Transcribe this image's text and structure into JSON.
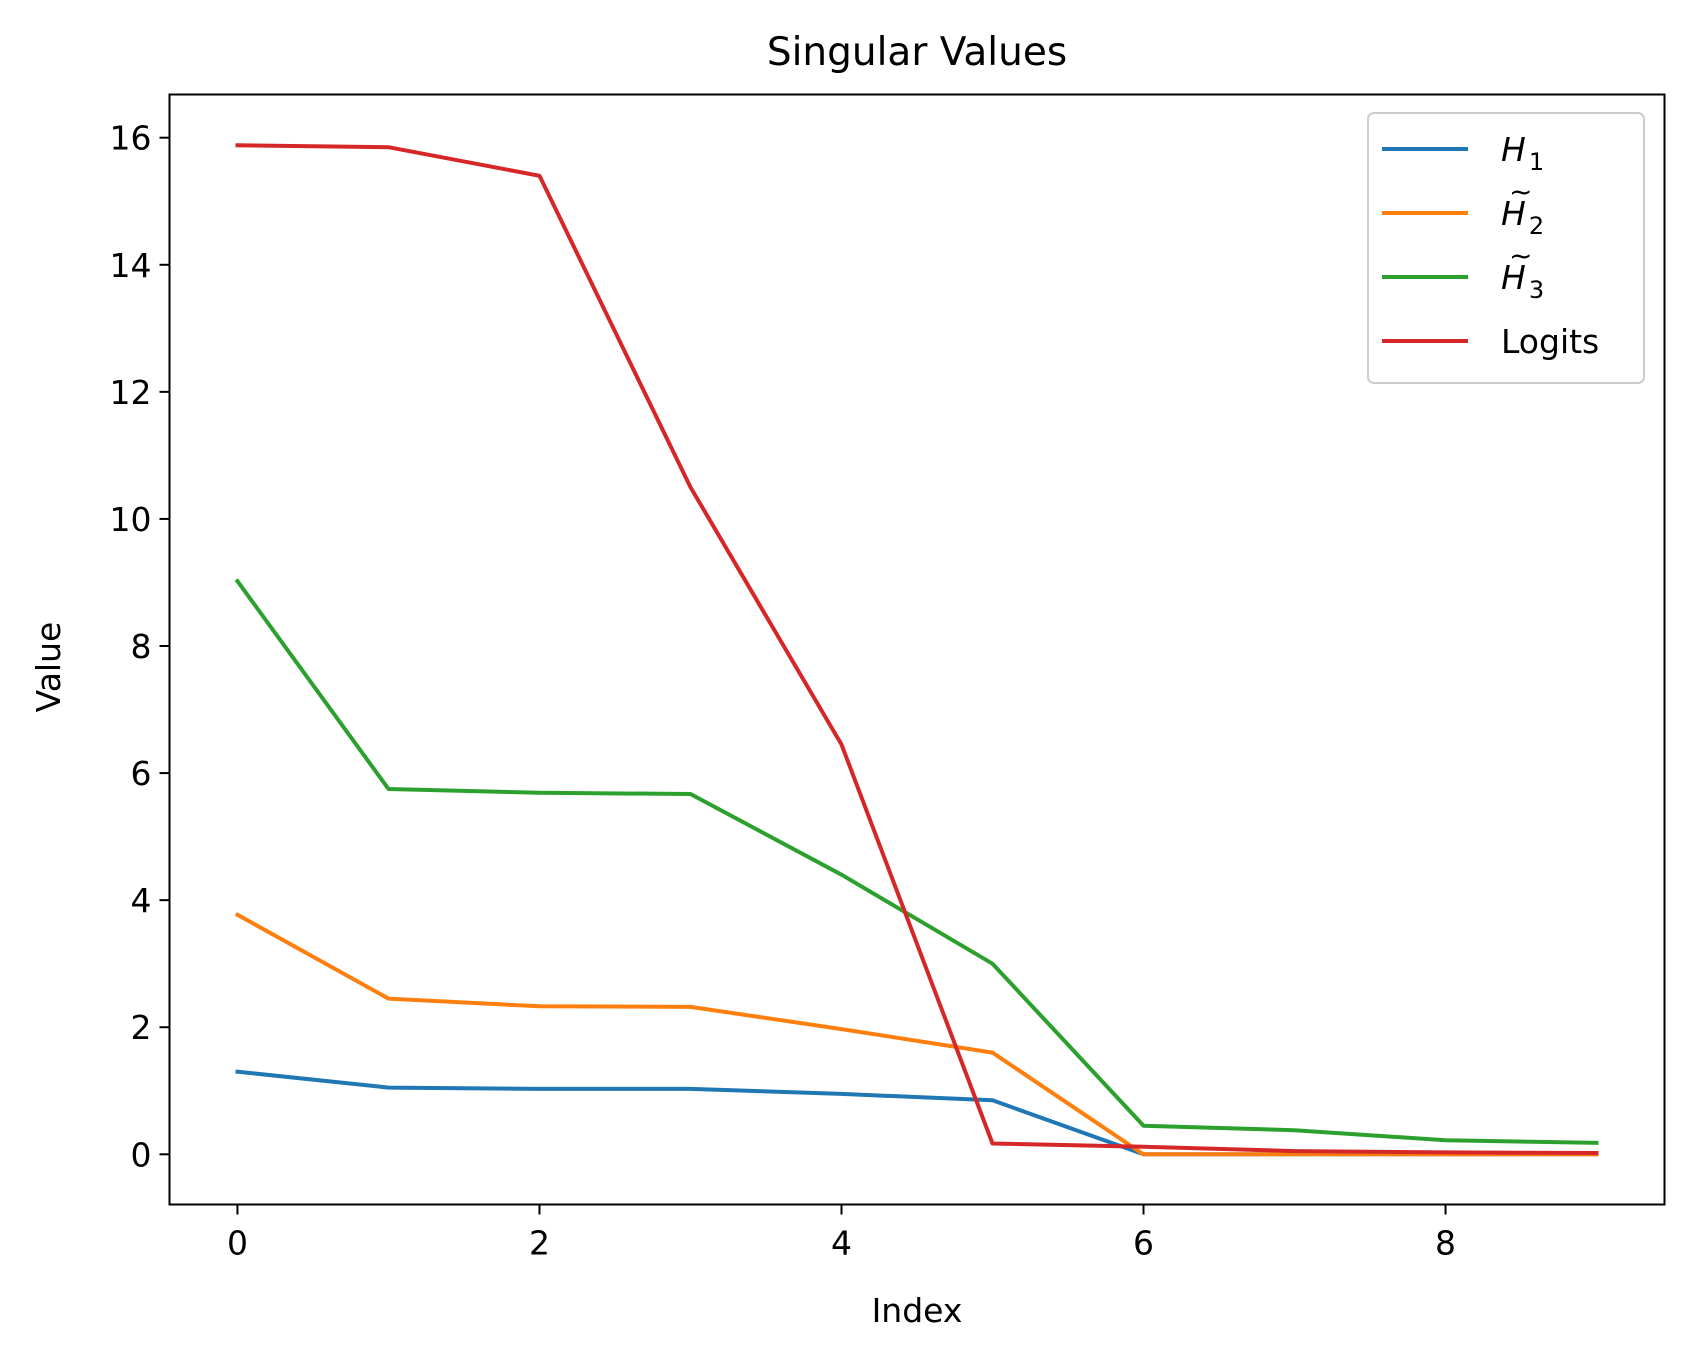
{
  "chart_data": {
    "type": "line",
    "title": "Singular Values",
    "xlabel": "Index",
    "ylabel": "Value",
    "x": [
      0,
      1,
      2,
      3,
      4,
      5,
      6,
      7,
      8,
      9
    ],
    "xlim": [
      -0.45,
      9.45
    ],
    "ylim": [
      -0.79,
      16.68
    ],
    "xticks": [
      0,
      2,
      4,
      6,
      8
    ],
    "yticks": [
      0,
      2,
      4,
      6,
      8,
      10,
      12,
      14,
      16
    ],
    "grid": false,
    "legend_position": "top-right",
    "series": [
      {
        "name": "H₁",
        "label_main": "H",
        "label_sub": "1",
        "tilde": false,
        "color": "#1f77b4",
        "values": [
          1.3,
          1.05,
          1.03,
          1.03,
          0.95,
          0.85,
          0.0,
          0.0,
          0.0,
          0.0
        ]
      },
      {
        "name": "H̃₂",
        "label_main": "H",
        "label_sub": "2",
        "tilde": true,
        "color": "#ff7f0e",
        "values": [
          3.77,
          2.45,
          2.33,
          2.32,
          1.97,
          1.6,
          0.0,
          0.0,
          0.0,
          0.0
        ]
      },
      {
        "name": "H̃₃",
        "label_main": "H",
        "label_sub": "3",
        "tilde": true,
        "color": "#2ca02c",
        "values": [
          9.02,
          5.75,
          5.69,
          5.67,
          4.4,
          3.0,
          0.45,
          0.38,
          0.22,
          0.18
        ]
      },
      {
        "name": "Logits",
        "label_main": "Logits",
        "label_sub": "",
        "tilde": false,
        "color": "#d62728",
        "values": [
          15.88,
          15.85,
          15.4,
          10.5,
          6.45,
          0.17,
          0.12,
          0.05,
          0.03,
          0.02
        ]
      }
    ]
  }
}
